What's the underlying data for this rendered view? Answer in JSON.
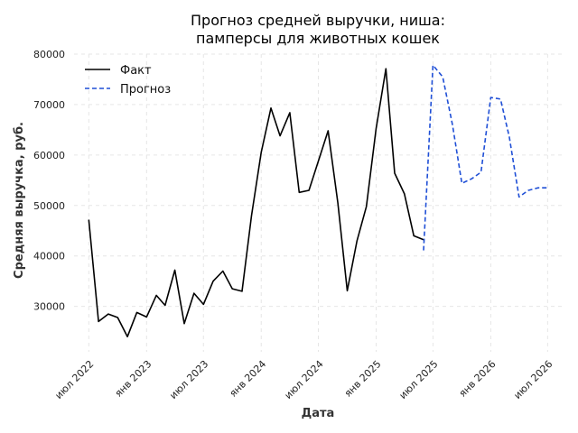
{
  "chart_data": {
    "type": "line",
    "title": [
      "Прогноз средней выручки, ниша:",
      "памперсы для животных кошек"
    ],
    "xlabel": "Дата",
    "ylabel": "Средняя выручка, руб.",
    "ylim": [
      21000,
      80000
    ],
    "yticks": [
      30000,
      40000,
      50000,
      60000,
      70000,
      80000
    ],
    "ytick_labels": [
      "30000",
      "40000",
      "50000",
      "60000",
      "70000",
      "80000"
    ],
    "xlim": [
      "2022-05-15",
      "2026-08-15"
    ],
    "xticks": [
      "2022-07-01",
      "2023-01-01",
      "2023-07-01",
      "2024-01-01",
      "2024-07-01",
      "2025-01-01",
      "2025-07-01",
      "2026-01-01",
      "2026-07-01"
    ],
    "xtick_labels": [
      "июл 2022",
      "янв 2023",
      "июл 2023",
      "янв 2024",
      "июл 2024",
      "янв 2025",
      "июл 2025",
      "янв 2026",
      "июл 2026"
    ],
    "grid": true,
    "legend_position": "top-left",
    "series": [
      {
        "name": "Факт",
        "color": "#000000",
        "style": "solid",
        "x": [
          "2022-07-01",
          "2022-08-01",
          "2022-09-01",
          "2022-10-01",
          "2022-11-01",
          "2022-12-01",
          "2023-01-01",
          "2023-02-01",
          "2023-03-01",
          "2023-04-01",
          "2023-05-01",
          "2023-06-01",
          "2023-07-01",
          "2023-08-01",
          "2023-09-01",
          "2023-10-01",
          "2023-11-01",
          "2023-12-01",
          "2024-01-01",
          "2024-02-01",
          "2024-03-01",
          "2024-04-01",
          "2024-05-01",
          "2024-06-01",
          "2024-07-01",
          "2024-08-01",
          "2024-09-01",
          "2024-10-01",
          "2024-11-01",
          "2024-12-01",
          "2025-01-01",
          "2025-02-01",
          "2025-03-01",
          "2025-04-01",
          "2025-05-01",
          "2025-06-01"
        ],
        "values": [
          47200,
          27000,
          28500,
          27800,
          24000,
          28800,
          27900,
          32200,
          30200,
          37200,
          26600,
          32600,
          30400,
          35000,
          37000,
          33500,
          33000,
          48000,
          60500,
          69300,
          63800,
          68400,
          52600,
          53000,
          58800,
          64800,
          50500,
          33100,
          43000,
          49800,
          65300,
          77100,
          56400,
          52300,
          44000,
          43200
        ]
      },
      {
        "name": "Прогноз",
        "color": "#1f4fd6",
        "style": "dashed",
        "x": [
          "2025-06-01",
          "2025-07-01",
          "2025-08-01",
          "2025-09-01",
          "2025-10-01",
          "2025-11-01",
          "2025-12-01",
          "2026-01-01",
          "2026-02-01",
          "2026-03-01",
          "2026-04-01",
          "2026-05-01",
          "2026-06-01",
          "2026-07-01"
        ],
        "values": [
          41100,
          77800,
          75500,
          66000,
          54400,
          55300,
          56600,
          71400,
          71100,
          63600,
          51700,
          53000,
          53500,
          53500
        ]
      }
    ]
  }
}
